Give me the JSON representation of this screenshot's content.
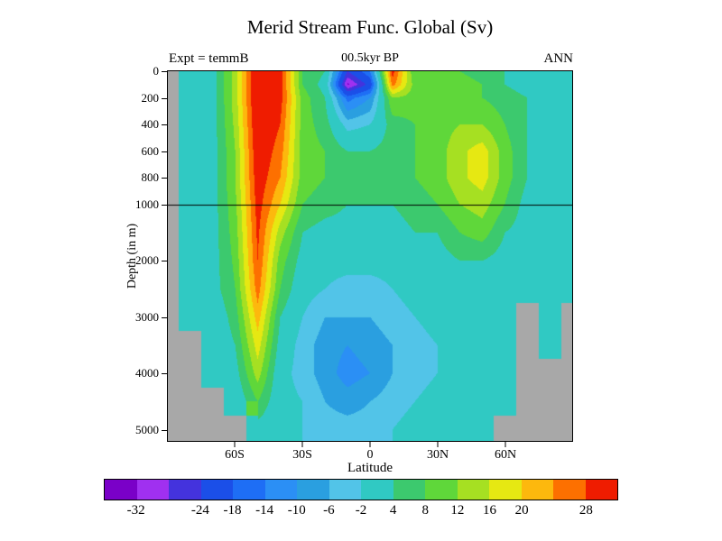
{
  "header": {
    "title": "Merid Stream Func. Global (Sv)",
    "experiment_label": "Expt = temmB",
    "time_label": "00.5kyr BP",
    "season_label": "ANN"
  },
  "chart_data": {
    "type": "heatmap",
    "title": "Merid Stream Func. Global (Sv)",
    "subtitle": "00.5kyr BP",
    "units": "Sv",
    "xlabel": "Latitude",
    "ylabel": "Depth (in m)",
    "x_ticks": [
      {
        "value": -60,
        "label": "60S"
      },
      {
        "value": -30,
        "label": "30S"
      },
      {
        "value": 0,
        "label": "0"
      },
      {
        "value": 30,
        "label": "30N"
      },
      {
        "value": 60,
        "label": "60N"
      }
    ],
    "y_ticks": [
      {
        "value": 0,
        "label": "0"
      },
      {
        "value": 200,
        "label": "200"
      },
      {
        "value": 400,
        "label": "400"
      },
      {
        "value": 600,
        "label": "600"
      },
      {
        "value": 800,
        "label": "800"
      },
      {
        "value": 1000,
        "label": "1000"
      },
      {
        "value": 2000,
        "label": "2000"
      },
      {
        "value": 3000,
        "label": "3000"
      },
      {
        "value": 4000,
        "label": "4000"
      },
      {
        "value": 5000,
        "label": "5000"
      }
    ],
    "lat_range": [
      -90,
      90
    ],
    "depth_range": [
      0,
      5200
    ],
    "axis_break_depth": 1000,
    "axis_break_fraction": 0.36,
    "reference_line_depth": 1000,
    "lats": [
      -90,
      -80,
      -70,
      -60,
      -50,
      -40,
      -30,
      -20,
      -10,
      0,
      10,
      20,
      30,
      40,
      50,
      60,
      70,
      80,
      90
    ],
    "depths": [
      0,
      100,
      200,
      400,
      600,
      800,
      1000,
      1500,
      2000,
      2500,
      3000,
      3500,
      4000,
      4500,
      5000
    ],
    "values": [
      [
        null,
        0,
        2,
        14,
        34,
        30,
        8,
        4,
        -24,
        -14,
        30,
        8,
        10,
        8,
        6,
        4,
        2,
        2,
        0
      ],
      [
        null,
        0,
        2,
        14,
        34,
        30,
        8,
        2,
        -33,
        -22,
        26,
        10,
        12,
        10,
        8,
        4,
        2,
        2,
        0
      ],
      [
        null,
        0,
        2,
        14,
        34,
        30,
        10,
        4,
        -16,
        -10,
        12,
        10,
        12,
        10,
        8,
        6,
        4,
        2,
        0
      ],
      [
        null,
        0,
        2,
        13,
        33,
        28,
        10,
        6,
        -4,
        -2,
        6,
        8,
        10,
        12,
        12,
        8,
        4,
        2,
        0
      ],
      [
        null,
        0,
        2,
        12,
        32,
        26,
        10,
        8,
        4,
        4,
        6,
        8,
        10,
        15,
        18,
        10,
        4,
        2,
        0
      ],
      [
        null,
        0,
        2,
        12,
        31,
        24,
        10,
        8,
        6,
        4,
        6,
        8,
        10,
        15,
        18,
        10,
        4,
        2,
        0
      ],
      [
        null,
        0,
        2,
        11,
        30,
        20,
        8,
        6,
        4,
        4,
        4,
        6,
        8,
        12,
        14,
        8,
        2,
        2,
        0
      ],
      [
        null,
        0,
        2,
        10,
        29,
        14,
        4,
        2,
        2,
        2,
        2,
        4,
        4,
        8,
        10,
        4,
        2,
        0,
        0
      ],
      [
        null,
        0,
        2,
        9,
        28,
        10,
        2,
        0,
        0,
        0,
        0,
        2,
        2,
        4,
        4,
        2,
        0,
        0,
        0
      ],
      [
        null,
        0,
        2,
        8,
        26,
        8,
        0,
        -2,
        -4,
        -4,
        -2,
        0,
        0,
        2,
        2,
        0,
        0,
        0,
        0
      ],
      [
        null,
        0,
        0,
        6,
        22,
        4,
        -2,
        -6,
        -6,
        -6,
        -4,
        -2,
        0,
        0,
        0,
        0,
        null,
        0,
        null
      ],
      [
        null,
        null,
        0,
        4,
        18,
        2,
        -4,
        -8,
        -10,
        -8,
        -6,
        -4,
        -2,
        0,
        0,
        0,
        null,
        0,
        null
      ],
      [
        null,
        null,
        0,
        2,
        14,
        0,
        -4,
        -8,
        -12,
        -10,
        -6,
        -4,
        -2,
        0,
        0,
        0,
        null,
        null,
        null
      ],
      [
        null,
        null,
        null,
        0,
        8,
        0,
        -2,
        -6,
        -8,
        -6,
        -4,
        -2,
        0,
        0,
        0,
        0,
        null,
        null,
        null
      ],
      [
        null,
        null,
        null,
        null,
        2,
        0,
        -2,
        -4,
        -4,
        -4,
        -2,
        0,
        0,
        0,
        0,
        null,
        null,
        null,
        null
      ]
    ],
    "levels": [
      -32,
      -28,
      -24,
      -18,
      -14,
      -10,
      -6,
      -2,
      4,
      8,
      12,
      16,
      20,
      24,
      28
    ],
    "palette": [
      "#7a00c8",
      "#a030f0",
      "#4433dd",
      "#1b4fe8",
      "#1e6ef5",
      "#2b8ff5",
      "#2a9fe0",
      "#52c4e8",
      "#30c9c3",
      "#3cc96e",
      "#5fd73a",
      "#a6e022",
      "#e6e812",
      "#fdb80d",
      "#fd7000",
      "#ef1c00"
    ],
    "mask_color": "#a8a8a8",
    "colorbar_tick_labels": [
      "-32",
      "-24",
      "-18",
      "-14",
      "-10",
      "-6",
      "-2",
      "4",
      "8",
      "12",
      "16",
      "20",
      "28"
    ],
    "colorbar_tick_positions": [
      1,
      3,
      4,
      5,
      6,
      7,
      8,
      9,
      10,
      11,
      12,
      13,
      15
    ]
  }
}
